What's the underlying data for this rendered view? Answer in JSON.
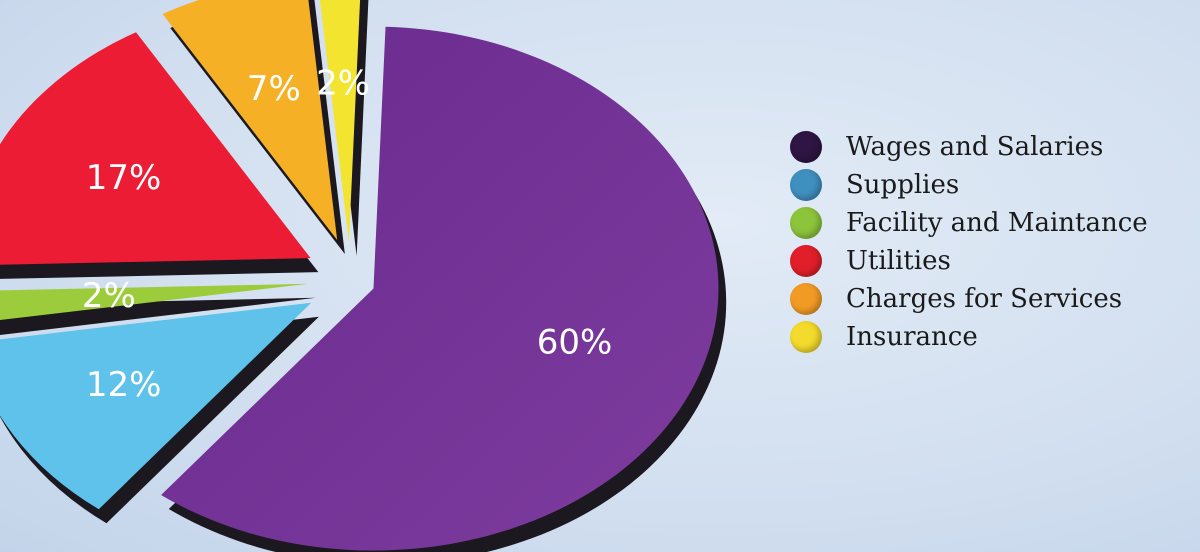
{
  "chart_data": {
    "type": "pie",
    "style": "exploded-3d",
    "slices": [
      {
        "label": "Wages and Salaries",
        "value": 60,
        "value_label": "60%",
        "color": "#6f2f91"
      },
      {
        "label": "Supplies",
        "value": 12,
        "value_label": "12%",
        "color": "#5fc2ea"
      },
      {
        "label": "Facility and Maintance",
        "value": 2,
        "value_label": "2%",
        "color": "#9ccc3b"
      },
      {
        "label": "Utilities",
        "value": 17,
        "value_label": "17%",
        "color": "#ec1c34"
      },
      {
        "label": "Charges for Services",
        "value": 7,
        "value_label": "7%",
        "color": "#f5b026"
      },
      {
        "label": "Insurance",
        "value": 2,
        "value_label": "2%",
        "color": "#f3e52f"
      }
    ],
    "legend_placement": "right",
    "legend_colors": [
      "#2e1544",
      "#3f8fbf",
      "#8cc43c",
      "#e11f2a",
      "#f29b24",
      "#f3da2c"
    ]
  }
}
